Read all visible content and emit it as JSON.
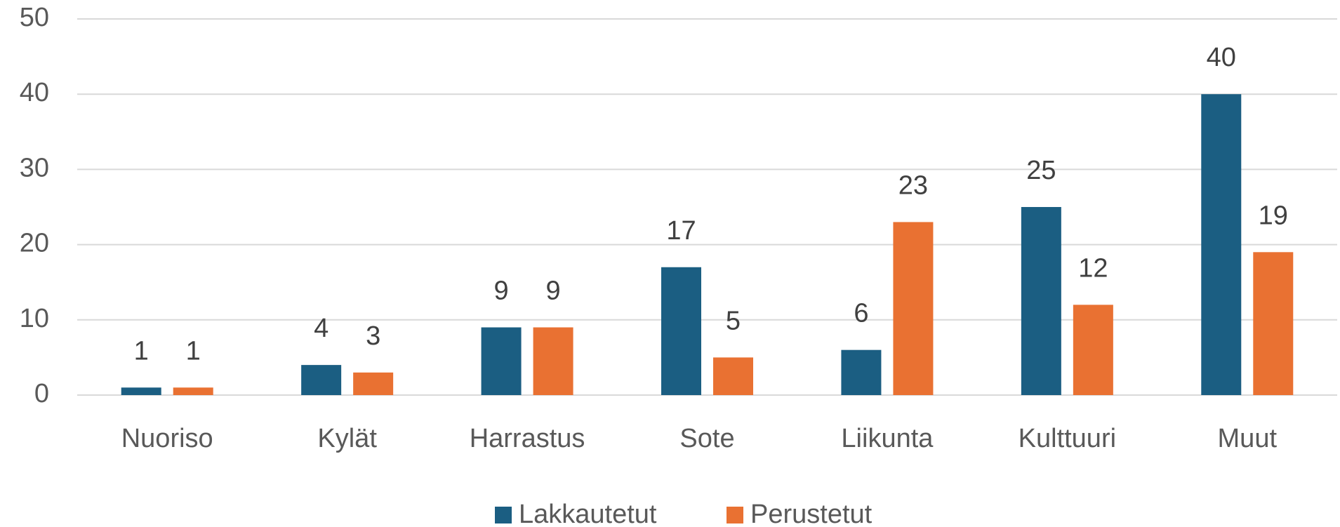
{
  "chart_data": {
    "type": "bar",
    "categories": [
      "Nuoriso",
      "Kylät",
      "Harrastus",
      "Sote",
      "Liikunta",
      "Kulttuuri",
      "Muut"
    ],
    "series": [
      {
        "name": "Lakkautetut",
        "color": "#1b5e82",
        "values": [
          1,
          4,
          9,
          17,
          6,
          25,
          40
        ]
      },
      {
        "name": "Perustetut",
        "color": "#e97132",
        "values": [
          1,
          3,
          9,
          5,
          23,
          12,
          19
        ]
      }
    ],
    "ylim": [
      0,
      50
    ],
    "yticks": [
      0,
      10,
      20,
      30,
      40,
      50
    ],
    "grid": true,
    "legend": "bottom"
  }
}
